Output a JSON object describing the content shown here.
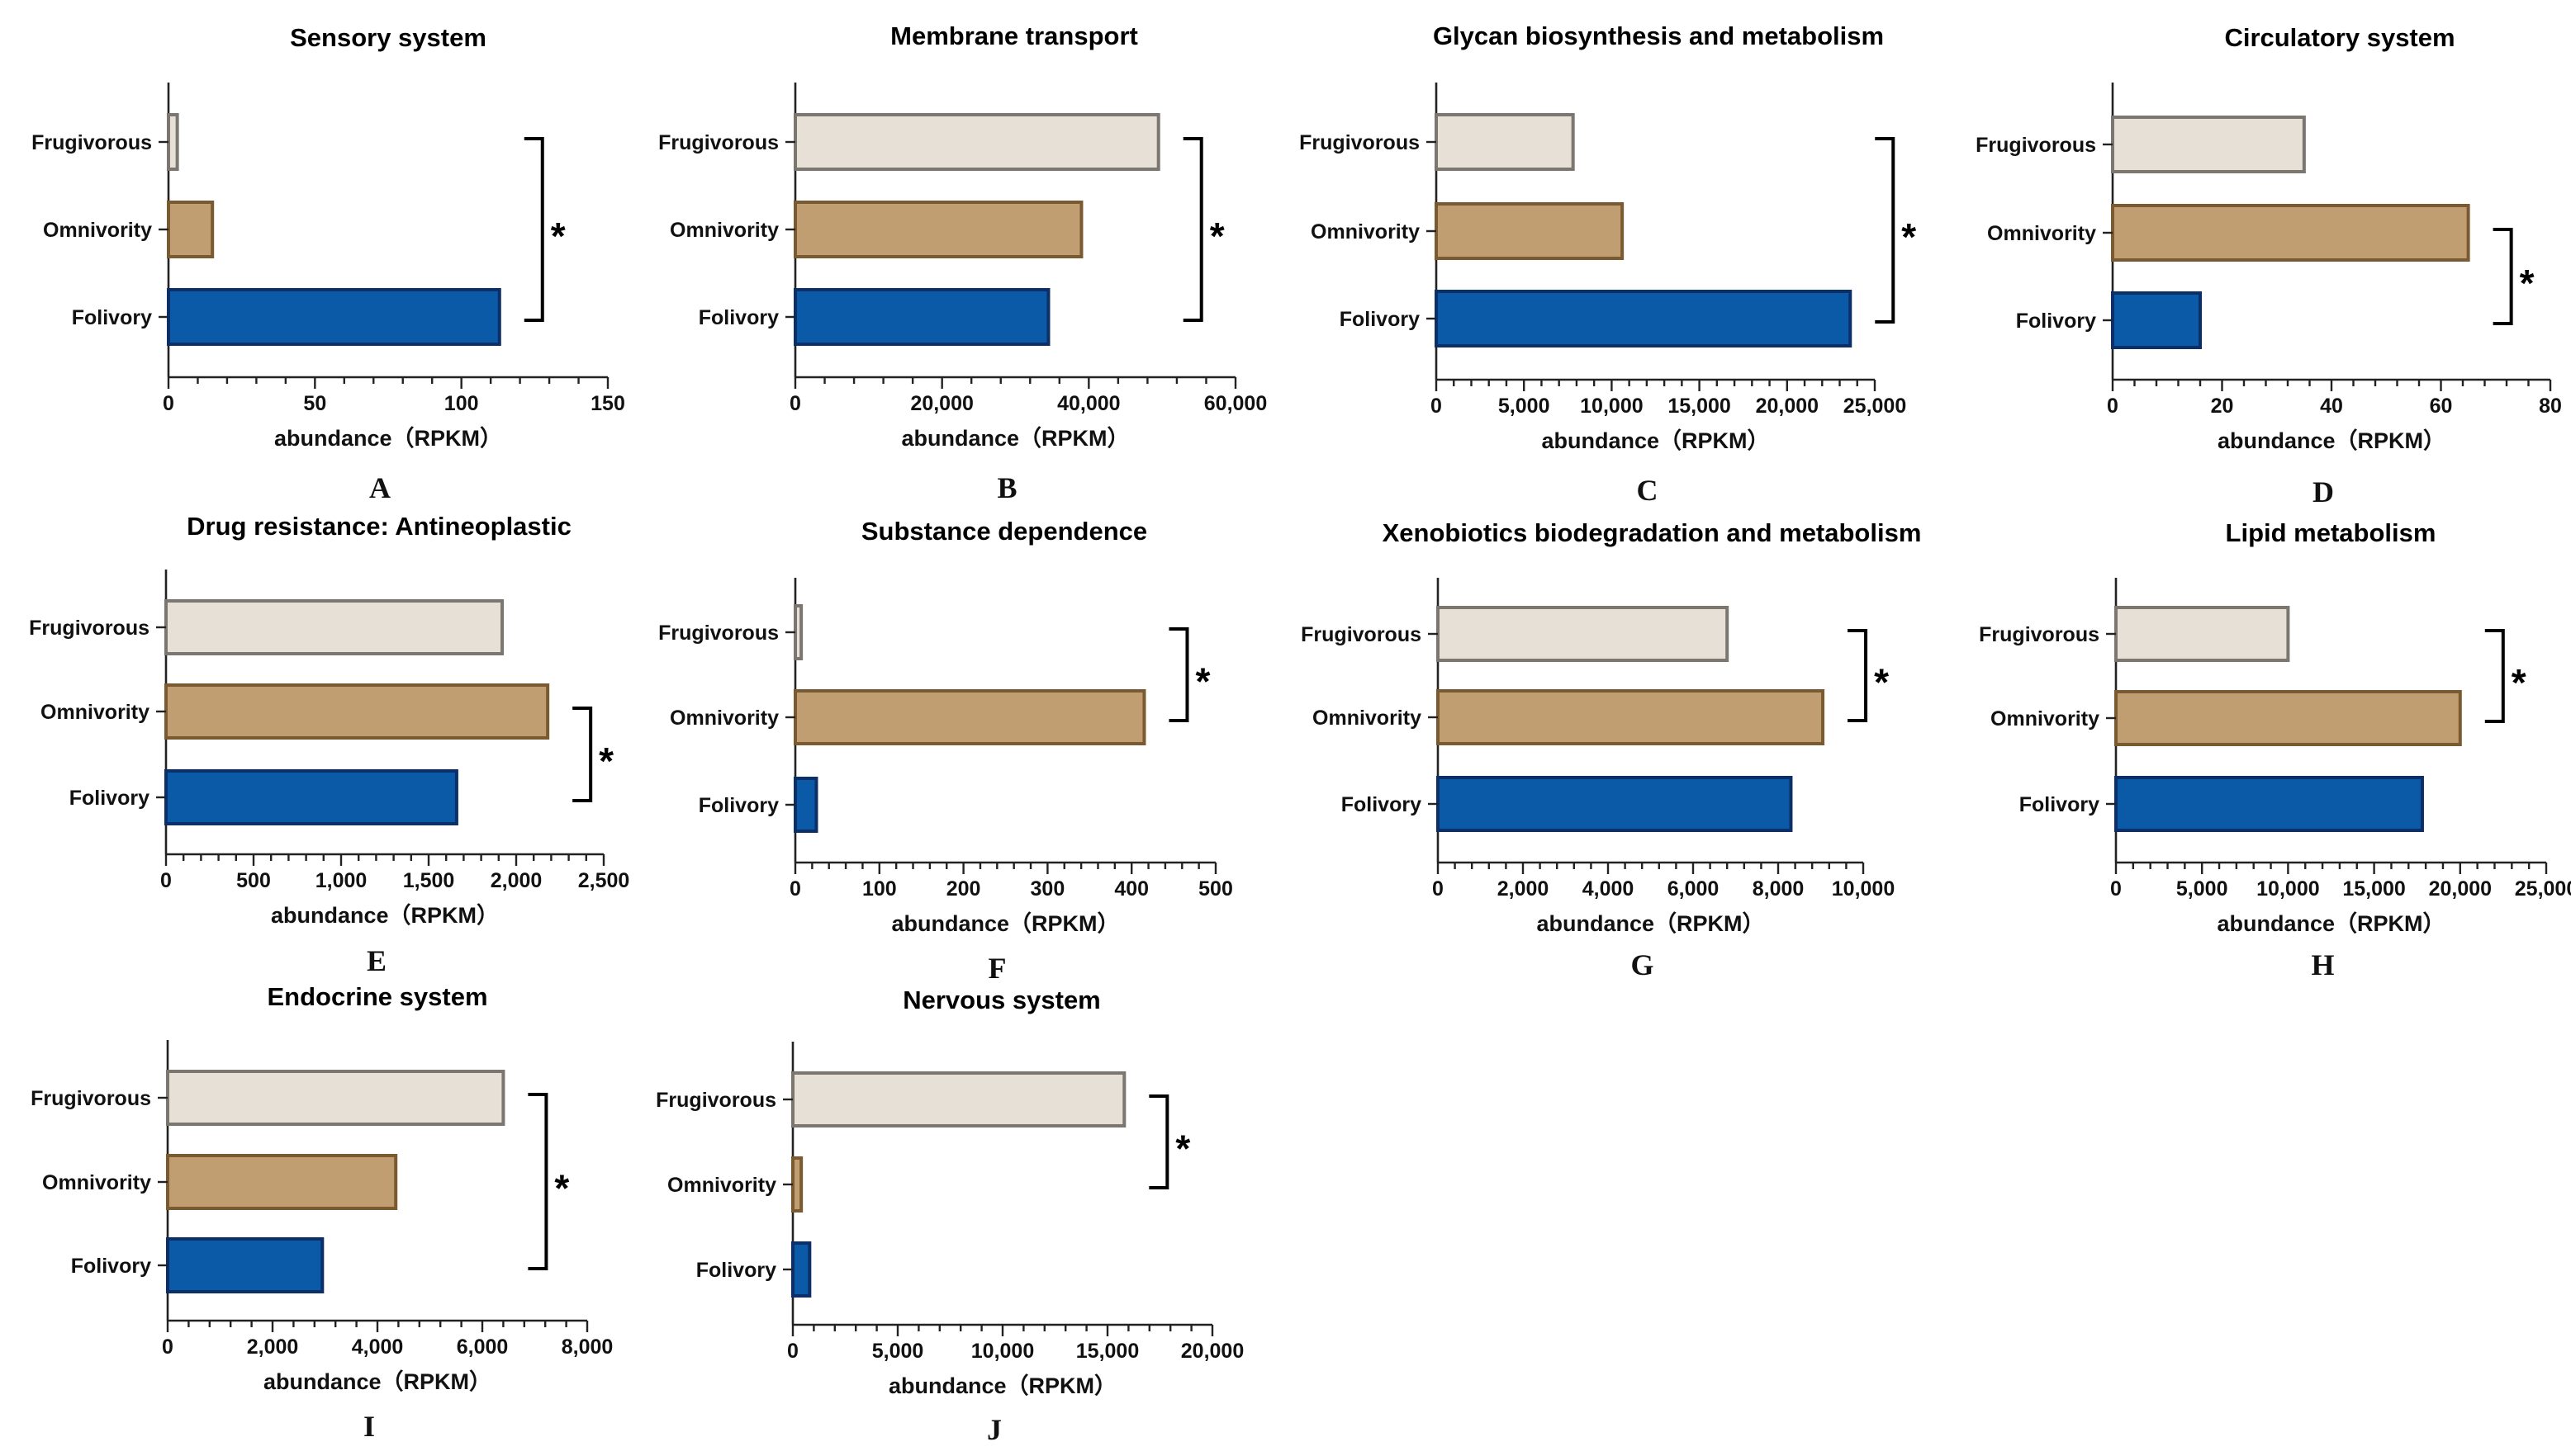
{
  "colors": {
    "Frugivorous": {
      "fill": "#e7e0d6",
      "stroke": "#7b7670"
    },
    "Omnivority": {
      "fill": "#c19e72",
      "stroke": "#7a5a30"
    },
    "Folivory": {
      "fill": "#0b5aa8",
      "stroke": "#0b2f66"
    }
  },
  "chart_data": [
    {
      "type": "bar",
      "orientation": "horizontal",
      "panel": "A",
      "title": "Sensory system",
      "xlabel": "abundance（RPKM）",
      "ylabel": "",
      "categories": [
        "Frugivorous",
        "Omnivority",
        "Folivory"
      ],
      "values": [
        3,
        15,
        113
      ],
      "xlim": [
        0,
        150
      ],
      "ticks": [
        0,
        50,
        100,
        150
      ],
      "tick_labels": [
        "0",
        "50",
        "100",
        "150"
      ],
      "significance": {
        "from": "Frugivorous",
        "to": "Folivory",
        "label": "*"
      }
    },
    {
      "type": "bar",
      "orientation": "horizontal",
      "panel": "B",
      "title": "Membrane transport",
      "xlabel": "abundance（RPKM）",
      "ylabel": "",
      "categories": [
        "Frugivorous",
        "Omnivority",
        "Folivory"
      ],
      "values": [
        49500,
        39000,
        34500
      ],
      "xlim": [
        0,
        60000
      ],
      "ticks": [
        0,
        20000,
        40000,
        60000
      ],
      "tick_labels": [
        "0",
        "20,000",
        "40,000",
        "60,000"
      ],
      "significance": {
        "from": "Frugivorous",
        "to": "Folivory",
        "label": "*"
      }
    },
    {
      "type": "bar",
      "orientation": "horizontal",
      "panel": "C",
      "title": "Glycan biosynthesis and metabolism",
      "xlabel": "abundance（RPKM）",
      "ylabel": "",
      "categories": [
        "Frugivorous",
        "Omnivority",
        "Folivory"
      ],
      "values": [
        7800,
        10600,
        23600
      ],
      "xlim": [
        0,
        25000
      ],
      "ticks": [
        0,
        5000,
        10000,
        15000,
        20000,
        25000
      ],
      "tick_labels": [
        "0",
        "5,000",
        "10,000",
        "15,000",
        "20,000",
        "25,000"
      ],
      "significance": {
        "from": "Frugivorous",
        "to": "Folivory",
        "label": "*"
      }
    },
    {
      "type": "bar",
      "orientation": "horizontal",
      "panel": "D",
      "title": "Circulatory system",
      "xlabel": "abundance（RPKM）",
      "ylabel": "",
      "categories": [
        "Frugivorous",
        "Omnivority",
        "Folivory"
      ],
      "values": [
        35,
        65,
        16
      ],
      "xlim": [
        0,
        80
      ],
      "ticks": [
        0,
        20,
        40,
        60,
        80
      ],
      "tick_labels": [
        "0",
        "20",
        "40",
        "60",
        "80"
      ],
      "significance": {
        "from": "Omnivority",
        "to": "Folivory",
        "label": "*"
      }
    },
    {
      "type": "bar",
      "orientation": "horizontal",
      "panel": "E",
      "title": "Drug resistance: Antineoplastic",
      "xlabel": "abundance（RPKM）",
      "ylabel": "",
      "categories": [
        "Frugivorous",
        "Omnivority",
        "Folivory"
      ],
      "values": [
        1920,
        2180,
        1660
      ],
      "xlim": [
        0,
        2500
      ],
      "ticks": [
        0,
        500,
        1000,
        1500,
        2000,
        2500
      ],
      "tick_labels": [
        "0",
        "500",
        "1,000",
        "1,500",
        "2,000",
        "2,500"
      ],
      "significance": {
        "from": "Omnivority",
        "to": "Folivory",
        "label": "*"
      }
    },
    {
      "type": "bar",
      "orientation": "horizontal",
      "panel": "F",
      "title": "Substance dependence",
      "xlabel": "abundance（RPKM）",
      "ylabel": "",
      "categories": [
        "Frugivorous",
        "Omnivority",
        "Folivory"
      ],
      "values": [
        7,
        415,
        25
      ],
      "xlim": [
        0,
        500
      ],
      "ticks": [
        0,
        100,
        200,
        300,
        400,
        500
      ],
      "tick_labels": [
        "0",
        "100",
        "200",
        "300",
        "400",
        "500"
      ],
      "significance": {
        "from": "Frugivorous",
        "to": "Omnivority",
        "label": "*"
      }
    },
    {
      "type": "bar",
      "orientation": "horizontal",
      "panel": "G",
      "title": "Xenobiotics biodegradation and metabolism",
      "xlabel": "abundance（RPKM）",
      "ylabel": "",
      "categories": [
        "Frugivorous",
        "Omnivority",
        "Folivory"
      ],
      "values": [
        6800,
        9050,
        8300
      ],
      "xlim": [
        0,
        10000
      ],
      "ticks": [
        0,
        2000,
        4000,
        6000,
        8000,
        10000
      ],
      "tick_labels": [
        "0",
        "2,000",
        "4,000",
        "6,000",
        "8,000",
        "10,000"
      ],
      "significance": {
        "from": "Frugivorous",
        "to": "Omnivority",
        "label": "*"
      }
    },
    {
      "type": "bar",
      "orientation": "horizontal",
      "panel": "H",
      "title": "Lipid metabolism",
      "xlabel": "abundance（RPKM）",
      "ylabel": "",
      "categories": [
        "Frugivorous",
        "Omnivority",
        "Folivory"
      ],
      "values": [
        10000,
        20000,
        17800
      ],
      "xlim": [
        0,
        25000
      ],
      "ticks": [
        0,
        5000,
        10000,
        15000,
        20000,
        25000
      ],
      "tick_labels": [
        "0",
        "5,000",
        "10,000",
        "15,000",
        "20,000",
        "25,000"
      ],
      "significance": {
        "from": "Frugivorous",
        "to": "Omnivority",
        "label": "*"
      }
    },
    {
      "type": "bar",
      "orientation": "horizontal",
      "panel": "I",
      "title": "Endocrine system",
      "xlabel": "abundance（RPKM）",
      "ylabel": "",
      "categories": [
        "Frugivorous",
        "Omnivority",
        "Folivory"
      ],
      "values": [
        6400,
        4350,
        2950
      ],
      "xlim": [
        0,
        8000
      ],
      "ticks": [
        0,
        2000,
        4000,
        6000,
        8000
      ],
      "tick_labels": [
        "0",
        "2,000",
        "4,000",
        "6,000",
        "8,000"
      ],
      "significance": {
        "from": "Frugivorous",
        "to": "Folivory",
        "label": "*"
      }
    },
    {
      "type": "bar",
      "orientation": "horizontal",
      "panel": "J",
      "title": "Nervous system",
      "xlabel": "abundance（RPKM）",
      "ylabel": "",
      "categories": [
        "Frugivorous",
        "Omnivority",
        "Folivory"
      ],
      "values": [
        15800,
        400,
        800
      ],
      "xlim": [
        0,
        20000
      ],
      "ticks": [
        0,
        5000,
        10000,
        15000,
        20000
      ],
      "tick_labels": [
        "0",
        "5,000",
        "10,000",
        "15,000",
        "20,000"
      ],
      "significance": {
        "from": "Frugivorous",
        "to": "Omnivority",
        "label": "*"
      }
    }
  ]
}
